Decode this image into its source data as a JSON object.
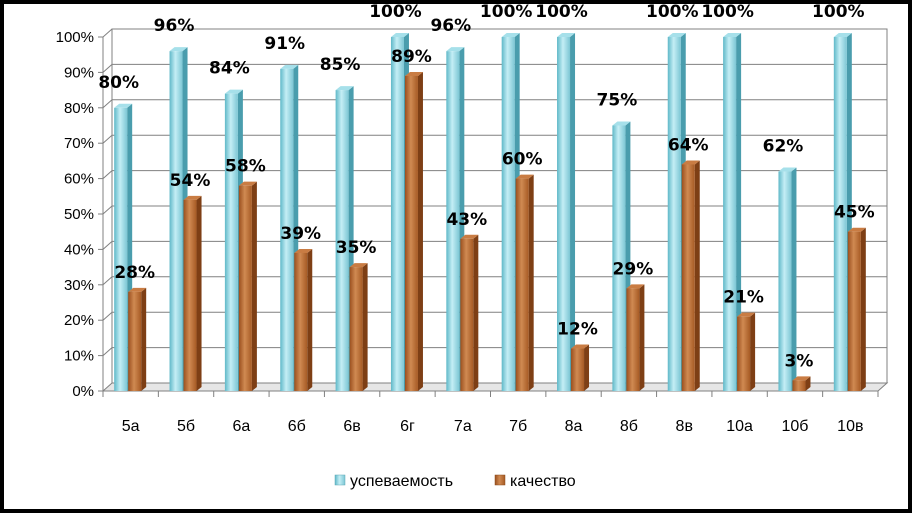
{
  "chart_data": {
    "type": "bar",
    "categories": [
      "5а",
      "5б",
      "6а",
      "6б",
      "6в",
      "6г",
      "7а",
      "7б",
      "8а",
      "8б",
      "8в",
      "10а",
      "10б",
      "10в"
    ],
    "series": [
      {
        "name": "успеваемость",
        "color": "#8fd0dc",
        "values": [
          80,
          96,
          84,
          91,
          85,
          100,
          96,
          100,
          100,
          75,
          100,
          100,
          62,
          100
        ],
        "labels": [
          "80%",
          "96%",
          "84%",
          "91%",
          "85%",
          "100%",
          "96%",
          "100%",
          "100%",
          "75%",
          "100%",
          "100%",
          "62%",
          "100%"
        ]
      },
      {
        "name": "качество",
        "color": "#b8662e",
        "values": [
          28,
          54,
          58,
          39,
          35,
          89,
          43,
          60,
          12,
          29,
          64,
          21,
          3,
          45
        ],
        "labels": [
          "28%",
          "54%",
          "58%",
          "39%",
          "35%",
          "89%",
          "43%",
          "60%",
          "12%",
          "29%",
          "64%",
          "21%",
          "3%",
          "45%"
        ]
      }
    ],
    "yticks": [
      "0%",
      "10%",
      "20%",
      "30%",
      "40%",
      "50%",
      "60%",
      "70%",
      "80%",
      "90%",
      "100%"
    ],
    "ylim": [
      0,
      100
    ],
    "grid": true,
    "legend": "bottom"
  }
}
